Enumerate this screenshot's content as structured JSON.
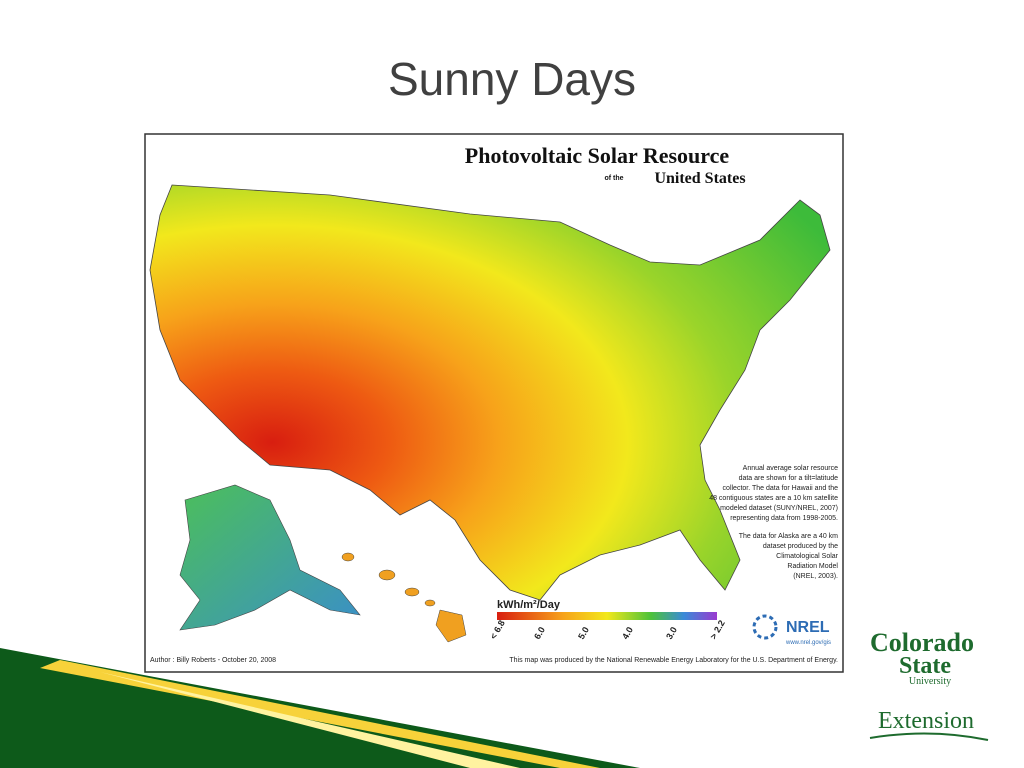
{
  "slide": {
    "title": "Sunny Days"
  },
  "map": {
    "title": "Photovoltaic Solar Resource",
    "subtitle_prefix": "of the",
    "subtitle": "United States",
    "note_lines": [
      "Annual average solar resource",
      "data are shown for a tilt=latitude",
      "collector. The data for Hawaii and the",
      "48 contiguous states are a 10 km satellite",
      "modeled dataset (SUNY/NREL, 2007)",
      "representing data from 1998-2005."
    ],
    "alaska_lines": [
      "The data for Alaska are a 40 km",
      "dataset produced by the",
      "Climatological Solar",
      "Radiation Model",
      "(NREL, 2003)."
    ],
    "legend_title": "kWh/m²/Day",
    "legend_labels": [
      "< 6.8",
      "6.0",
      "5.0",
      "4.0",
      "3.0",
      "> 2.2"
    ],
    "logo": "NREL",
    "url": "www.nrel.gov/gis",
    "author": "Author : Billy Roberts - October 20, 2008",
    "credit": "This map was produced by the National Renewable Energy Laboratory for the U.S. Department of Energy."
  },
  "logos": {
    "university_1": "Colorado",
    "university_2": "State",
    "university_3": "University",
    "extension": "Extension"
  }
}
